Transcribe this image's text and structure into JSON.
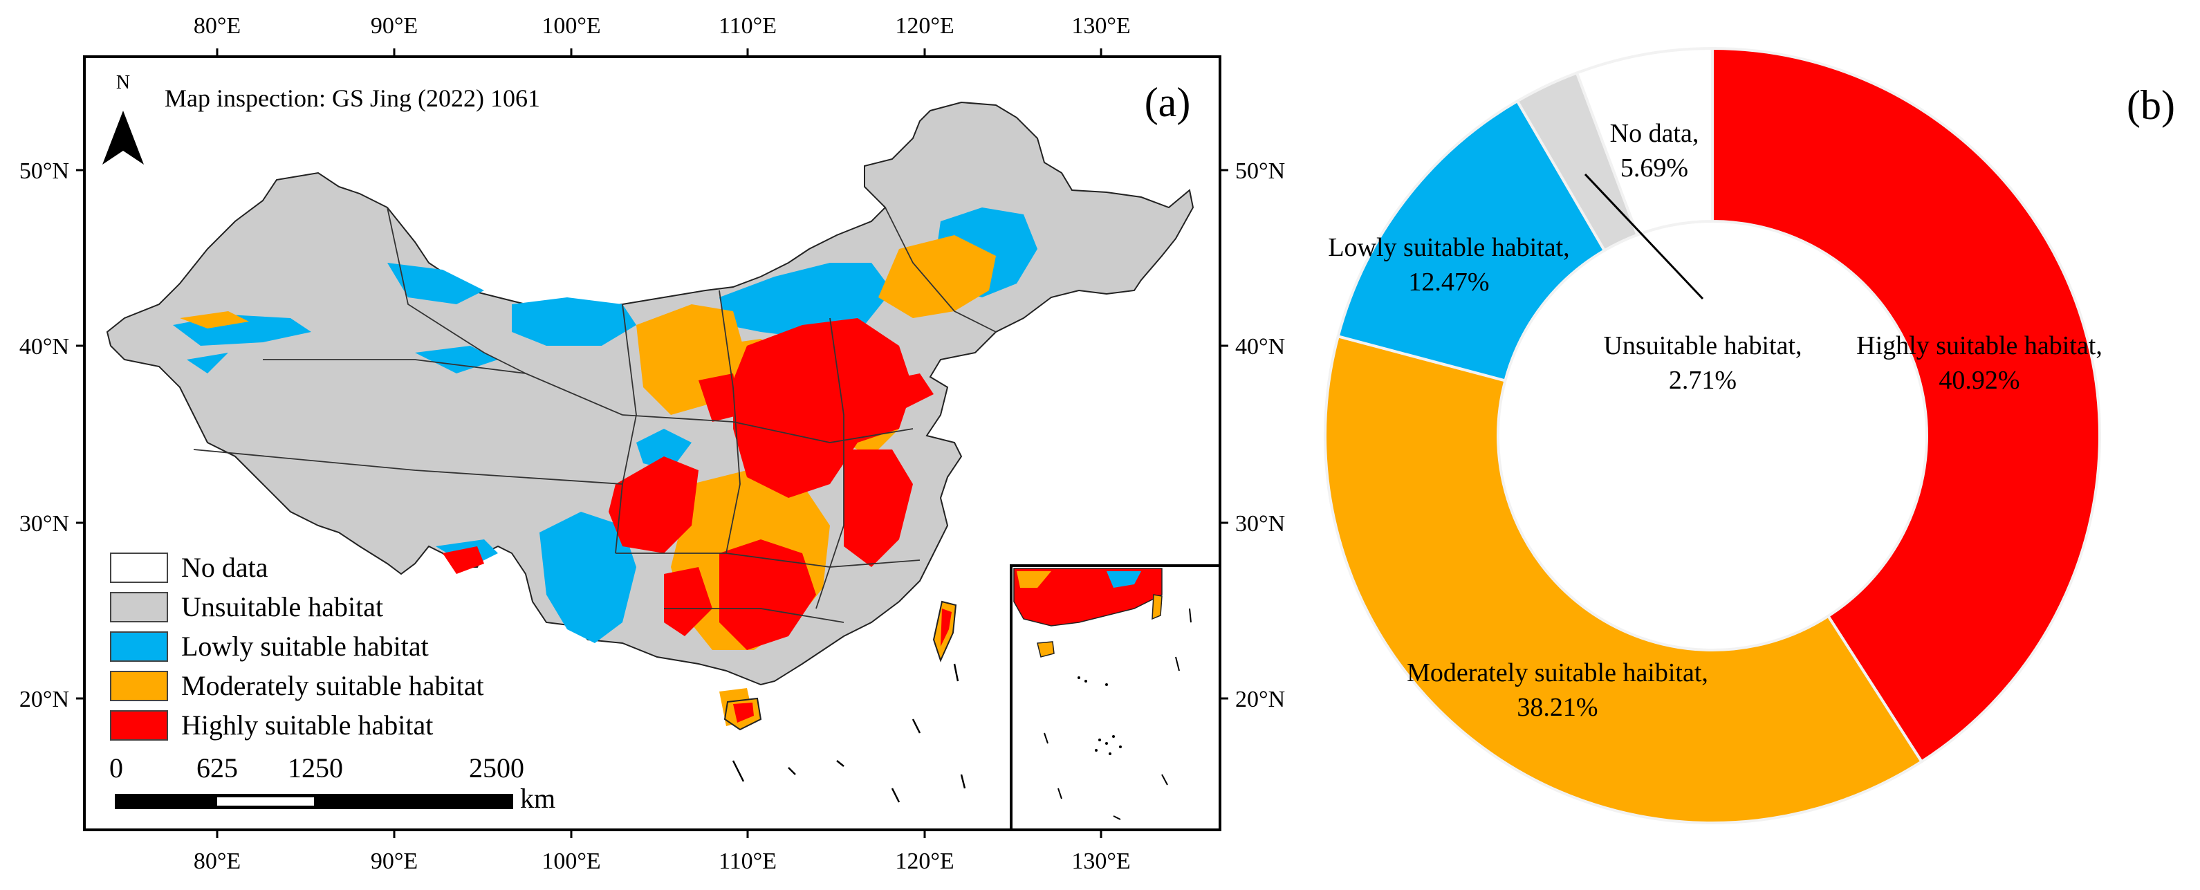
{
  "panel_a": {
    "label": "(a)",
    "inspection_note": "Map inspection: GS Jing (2022) 1061",
    "north_label": "N",
    "x_ticks": [
      "80°E",
      "90°E",
      "100°E",
      "110°E",
      "120°E",
      "130°E"
    ],
    "y_ticks": [
      "50°N",
      "40°N",
      "30°N",
      "20°N"
    ],
    "legend": [
      {
        "label": "No data",
        "color": "#ffffff"
      },
      {
        "label": "Unsuitable habitat",
        "color": "#cccccc"
      },
      {
        "label": "Lowly suitable habitat",
        "color": "#00b0f0"
      },
      {
        "label": "Moderately suitable habitat",
        "color": "#ffaa00"
      },
      {
        "label": "Highly suitable habitat",
        "color": "#ff0000"
      }
    ],
    "scale_bar": {
      "ticks": [
        "0",
        "625",
        "1250",
        "2500"
      ],
      "unit": "km"
    }
  },
  "panel_b": {
    "label": "(b)",
    "chart_data": {
      "type": "pie",
      "variant": "donut",
      "slices": [
        {
          "name": "Highly suitable habitat,",
          "value": 40.92,
          "label_value": "40.92%",
          "color": "#ff0000"
        },
        {
          "name": "Moderately suitable haibitat,",
          "value": 38.21,
          "label_value": "38.21%",
          "color": "#ffaa00"
        },
        {
          "name": "Lowly suitable habitat,",
          "value": 12.47,
          "label_value": "12.47%",
          "color": "#00b0f0"
        },
        {
          "name": "Unsuitable habitat,",
          "value": 2.71,
          "label_value": "2.71%",
          "color": "#d9d9d9"
        },
        {
          "name": "No data,",
          "value": 5.69,
          "label_value": "5.69%",
          "color": "#ffffff"
        }
      ],
      "start": "12 o'clock, clockwise"
    }
  }
}
